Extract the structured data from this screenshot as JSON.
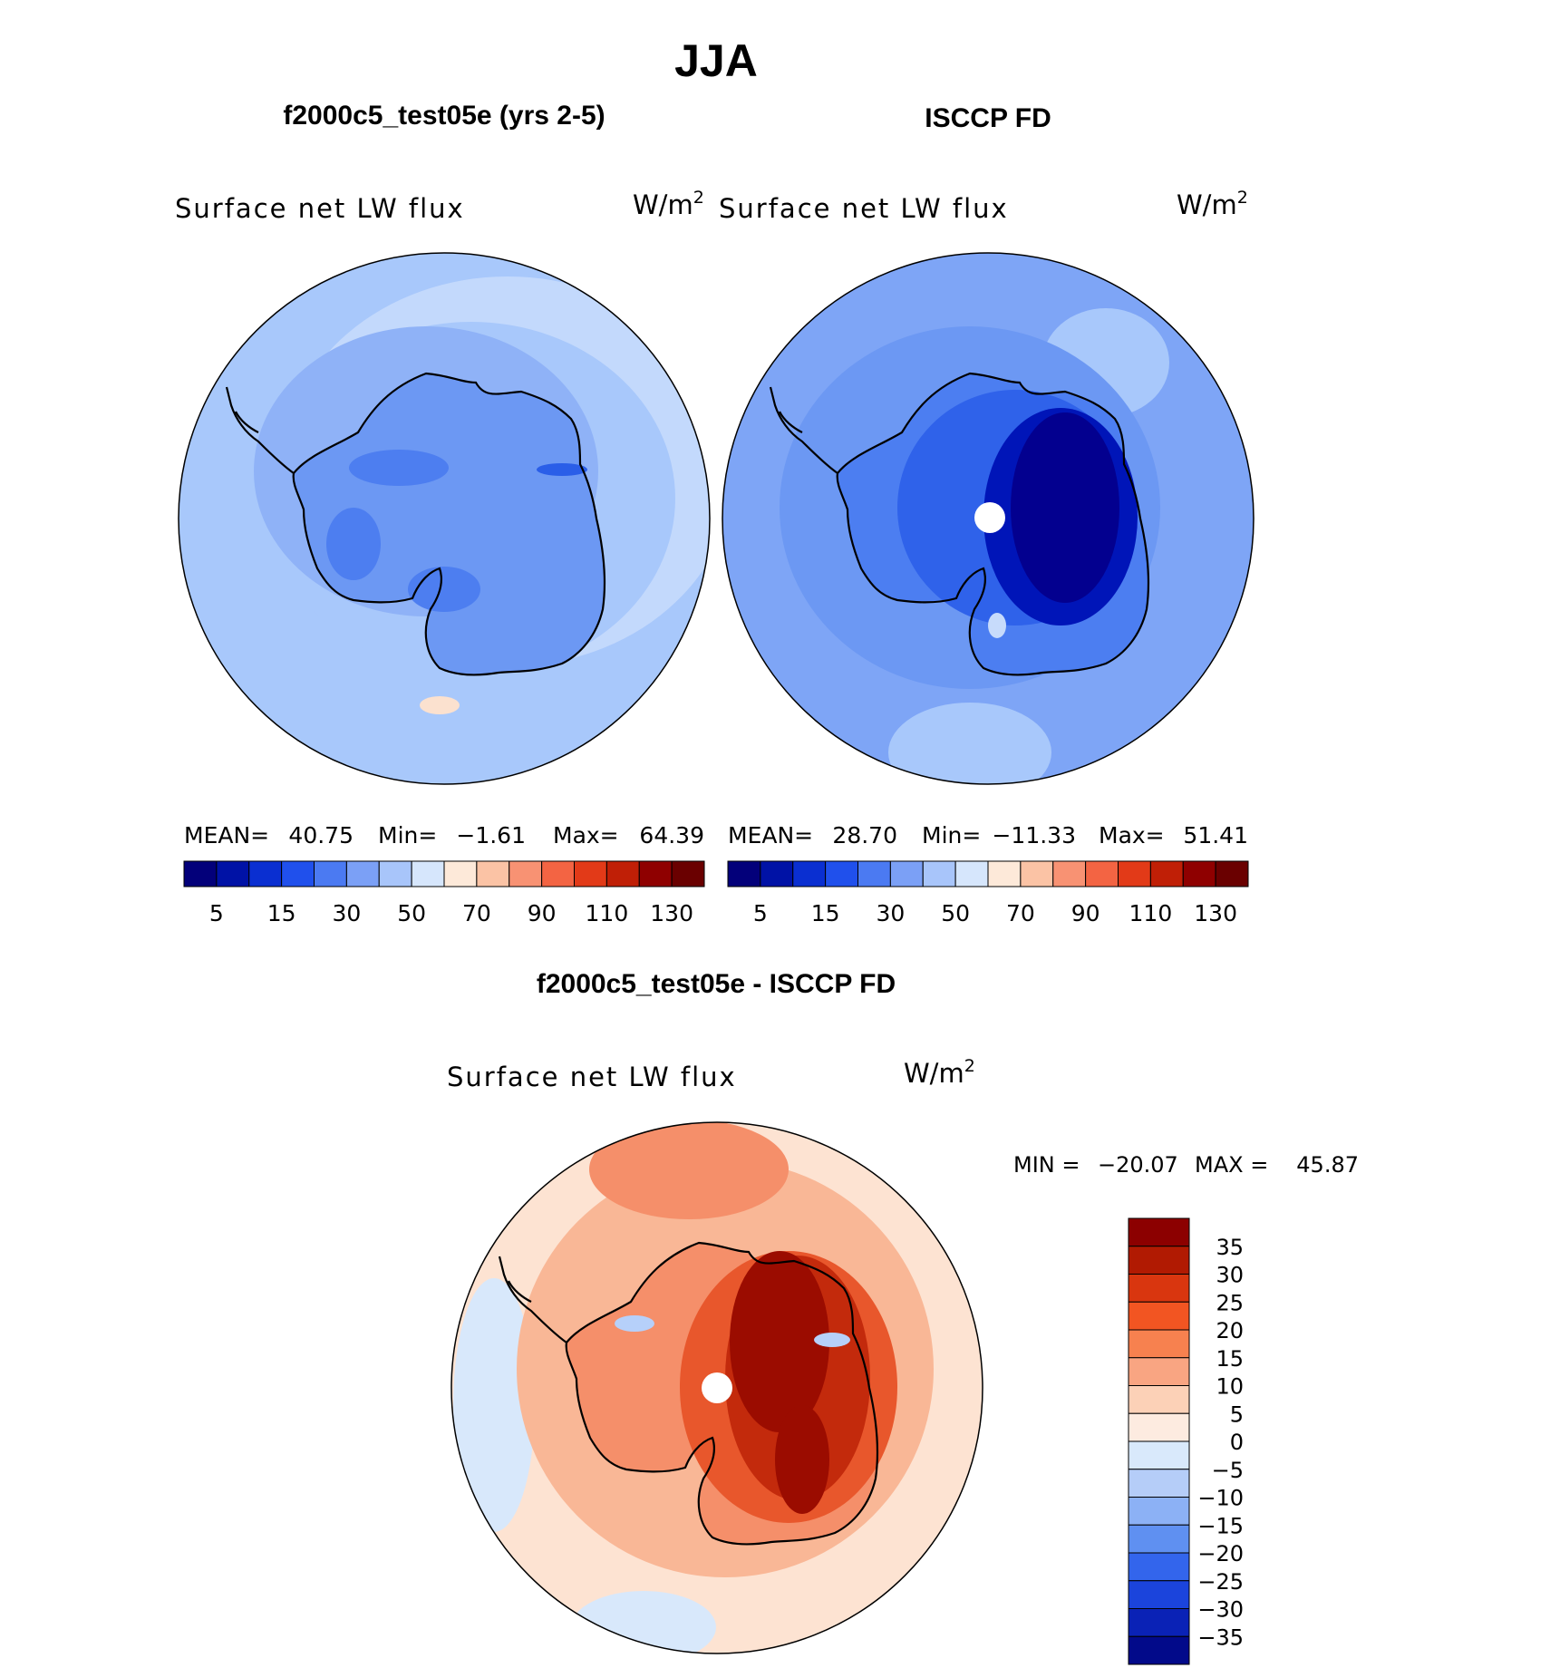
{
  "title": "JJA",
  "panels": [
    {
      "heading": "f2000c5_test05e (yrs 2-5)",
      "variable": "Surface net LW flux",
      "units_base": "W/m",
      "units_exp": "2",
      "stats": {
        "mean_label": "MEAN=",
        "mean": "40.75",
        "min_label": "Min=",
        "min": "−1.61",
        "max_label": "Max=",
        "max": "64.39"
      },
      "field": {
        "ocean": "#a8c8fb",
        "mid": "#8fb2f7",
        "shelf": "#6c98f3",
        "ice": "#4d7ef0",
        "core": "#4d7ef0",
        "accent": "#2a5ee8",
        "patch": "#c8dcfc",
        "spot": "#fbe1cf"
      },
      "has_pole_hole": false
    },
    {
      "heading": "ISCCP FD",
      "variable": "Surface net LW flux",
      "units_base": "W/m",
      "units_exp": "2",
      "stats": {
        "mean_label": "MEAN=",
        "mean": "28.70",
        "min_label": "Min=",
        "min": "−11.33",
        "max_label": "Max=",
        "max": "51.41"
      },
      "field": {
        "ocean": "#7ea5f6",
        "mid": "#6c98f3",
        "shelf": "#4c7ef1",
        "ice": "#2f62ea",
        "core": "#03008f",
        "accent": "#0015b8",
        "patch": "#a8c8fb",
        "spot": "#c7dbfb"
      },
      "has_pole_hole": true
    }
  ],
  "colorbar_top": {
    "colors": [
      "#03007a",
      "#0012a6",
      "#0a2fd1",
      "#2050ec",
      "#4b7af2",
      "#7ba0f6",
      "#a8c5fa",
      "#d6e6fc",
      "#fde9d9",
      "#fbc3a5",
      "#f89273",
      "#f36443",
      "#e23a18",
      "#c01f06",
      "#8f0000",
      "#6a0000"
    ],
    "tick_labels": [
      "5",
      "15",
      "30",
      "50",
      "70",
      "90",
      "110",
      "130"
    ]
  },
  "diff_panel": {
    "heading": "f2000c5_test05e - ISCCP FD",
    "variable": "Surface net LW flux",
    "units_base": "W/m",
    "units_exp": "2",
    "min_label": "MIN =",
    "min": "−20.07",
    "max_label": "MAX =",
    "max": "45.87",
    "field": {
      "ocean": "#fde3d2",
      "mid": "#f9b796",
      "shelf": "#f58f6a",
      "ice": "#e8572c",
      "core": "#9b0c00",
      "accent": "#c32a0c",
      "patch": "#d8e8fb",
      "spot": "#b6d0fa"
    },
    "has_pole_hole": true
  },
  "colorbar_diff": {
    "colors": [
      "#8c0000",
      "#b11a02",
      "#d9360f",
      "#f25522",
      "#f7814f",
      "#f9a582",
      "#fcd1b7",
      "#fdebe0",
      "#d9e9fb",
      "#b5cdf8",
      "#8cb1f5",
      "#5f90f1",
      "#3365ec",
      "#1b44dc",
      "#0a22b6",
      "#020a8a"
    ],
    "tick_labels": [
      "35",
      "30",
      "25",
      "20",
      "15",
      "10",
      "5",
      "0",
      "−5",
      "−10",
      "−15",
      "−20",
      "−25",
      "−30",
      "−35"
    ]
  }
}
